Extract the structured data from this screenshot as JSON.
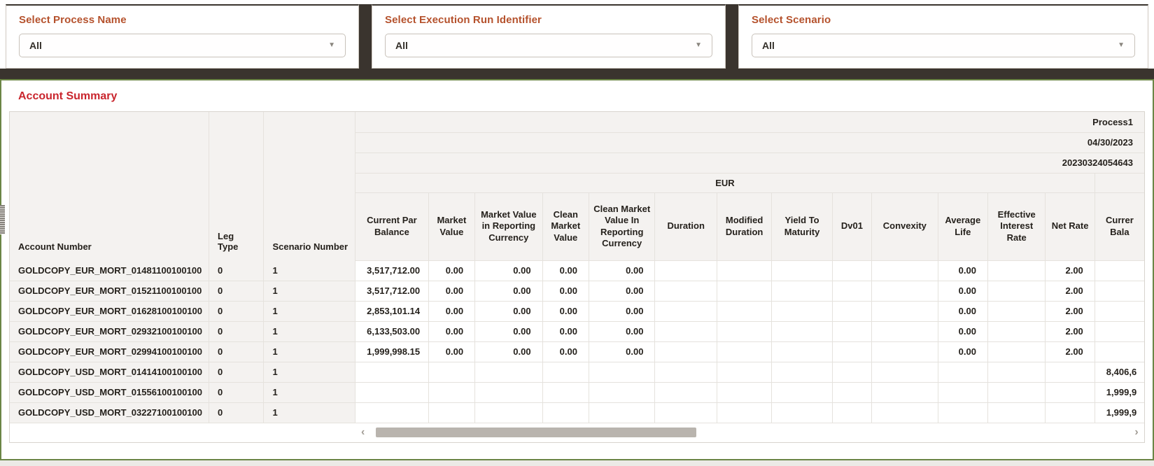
{
  "filters": [
    {
      "label": "Select Process Name",
      "value": "All"
    },
    {
      "label": "Select Execution Run Identifier",
      "value": "All"
    },
    {
      "label": "Select Scenario",
      "value": "All"
    }
  ],
  "panel": {
    "title": "Account Summary"
  },
  "table": {
    "meta_rows": [
      {
        "name": "process-name",
        "text": "Process1"
      },
      {
        "name": "as-of-date",
        "text": "04/30/2023"
      },
      {
        "name": "run-identifier",
        "text": "20230324054643"
      }
    ],
    "currency_group_label": "EUR",
    "frozen_headers": [
      "Account Number",
      "Leg Type",
      "Scenario Number"
    ],
    "columns": [
      "Current Par Balance",
      "Market Value",
      "Market Value in Reporting Currency",
      "Clean Market Value",
      "Clean Market Value In Reporting Currency",
      "Duration",
      "Modified Duration",
      "Yield To Maturity",
      "Dv01",
      "Convexity",
      "Average Life",
      "Effective Interest Rate",
      "Net Rate",
      "Currer Bala"
    ],
    "rows": [
      {
        "account": "GOLDCOPY_EUR_MORT_01481100100100",
        "leg_type": "0",
        "scenario": "1",
        "values": [
          "3,517,712.00",
          "0.00",
          "0.00",
          "0.00",
          "0.00",
          "",
          "",
          "",
          "",
          "",
          "0.00",
          "",
          "2.00",
          ""
        ]
      },
      {
        "account": "GOLDCOPY_EUR_MORT_01521100100100",
        "leg_type": "0",
        "scenario": "1",
        "values": [
          "3,517,712.00",
          "0.00",
          "0.00",
          "0.00",
          "0.00",
          "",
          "",
          "",
          "",
          "",
          "0.00",
          "",
          "2.00",
          ""
        ]
      },
      {
        "account": "GOLDCOPY_EUR_MORT_01628100100100",
        "leg_type": "0",
        "scenario": "1",
        "values": [
          "2,853,101.14",
          "0.00",
          "0.00",
          "0.00",
          "0.00",
          "",
          "",
          "",
          "",
          "",
          "0.00",
          "",
          "2.00",
          ""
        ]
      },
      {
        "account": "GOLDCOPY_EUR_MORT_02932100100100",
        "leg_type": "0",
        "scenario": "1",
        "values": [
          "6,133,503.00",
          "0.00",
          "0.00",
          "0.00",
          "0.00",
          "",
          "",
          "",
          "",
          "",
          "0.00",
          "",
          "2.00",
          ""
        ]
      },
      {
        "account": "GOLDCOPY_EUR_MORT_02994100100100",
        "leg_type": "0",
        "scenario": "1",
        "values": [
          "1,999,998.15",
          "0.00",
          "0.00",
          "0.00",
          "0.00",
          "",
          "",
          "",
          "",
          "",
          "0.00",
          "",
          "2.00",
          ""
        ]
      },
      {
        "account": "GOLDCOPY_USD_MORT_01414100100100",
        "leg_type": "0",
        "scenario": "1",
        "values": [
          "",
          "",
          "",
          "",
          "",
          "",
          "",
          "",
          "",
          "",
          "",
          "",
          "",
          "8,406,6"
        ]
      },
      {
        "account": "GOLDCOPY_USD_MORT_01556100100100",
        "leg_type": "0",
        "scenario": "1",
        "values": [
          "",
          "",
          "",
          "",
          "",
          "",
          "",
          "",
          "",
          "",
          "",
          "",
          "",
          "1,999,9"
        ]
      },
      {
        "account": "GOLDCOPY_USD_MORT_03227100100100",
        "leg_type": "0",
        "scenario": "1",
        "values": [
          "",
          "",
          "",
          "",
          "",
          "",
          "",
          "",
          "",
          "",
          "",
          "",
          "",
          "1,999,9"
        ]
      }
    ]
  },
  "scrollbar": {
    "left_arrow": "‹",
    "right_arrow": "›",
    "thumb_start_pct": 1,
    "thumb_width_pct": 42
  },
  "colors": {
    "filter_label_orange": "#b5522d",
    "panel_title_red": "#c9252d",
    "dark_bar": "#3a342e",
    "panel_border_green": "#6b8546",
    "header_background": "#f4f2f0",
    "scrollbar_thumb": "#b9b4ae"
  }
}
